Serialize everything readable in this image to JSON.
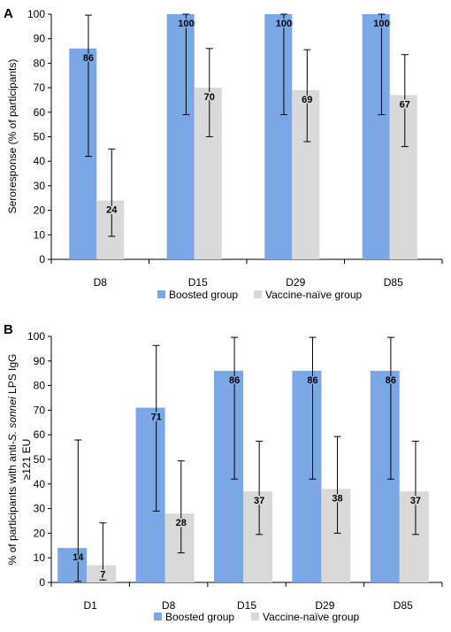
{
  "chart_data": [
    {
      "type": "bar",
      "panel_label": "A",
      "ylabel": "Seroresponse (% of participants)",
      "ylim": [
        0,
        100
      ],
      "yticks": [
        0,
        10,
        20,
        30,
        40,
        50,
        60,
        70,
        80,
        90,
        100
      ],
      "categories": [
        "D8",
        "D15",
        "D29",
        "D85"
      ],
      "series": [
        {
          "name": "Boosted group",
          "color": "#7aa8e6",
          "values": [
            86,
            100,
            100,
            100
          ],
          "err_low": [
            42,
            59,
            59,
            59
          ],
          "err_high": [
            99.6,
            100,
            100,
            100
          ]
        },
        {
          "name": "Vaccine-naïve group",
          "color": "#d9d9d9",
          "values": [
            24,
            70,
            69,
            67
          ],
          "err_low": [
            9.4,
            50,
            48,
            46
          ],
          "err_high": [
            45,
            86,
            85.5,
            83.5
          ]
        }
      ],
      "legend": "bottom",
      "grid": false
    },
    {
      "type": "bar",
      "panel_label": "B",
      "ylabel_parts": [
        "% of participants with anti-",
        "S. sonnei",
        " LPS IgG",
        "≥121 EU"
      ],
      "ylim": [
        0,
        100
      ],
      "yticks": [
        0,
        10,
        20,
        30,
        40,
        50,
        60,
        70,
        80,
        90,
        100
      ],
      "categories": [
        "D1",
        "D8",
        "D15",
        "D29",
        "D85"
      ],
      "series": [
        {
          "name": "Boosted group",
          "color": "#7aa8e6",
          "values": [
            14,
            71,
            86,
            86,
            86
          ],
          "err_low": [
            0.4,
            29,
            42,
            42,
            42
          ],
          "err_high": [
            57.9,
            96.3,
            99.6,
            99.6,
            99.6
          ]
        },
        {
          "name": "Vaccine-naïve group",
          "color": "#d9d9d9",
          "values": [
            7,
            28,
            37,
            38,
            37
          ],
          "err_low": [
            1,
            12,
            19.5,
            20,
            19.5
          ],
          "err_high": [
            24.2,
            49.4,
            57.4,
            59.3,
            57.4
          ]
        }
      ],
      "legend": "bottom",
      "grid": false
    }
  ]
}
